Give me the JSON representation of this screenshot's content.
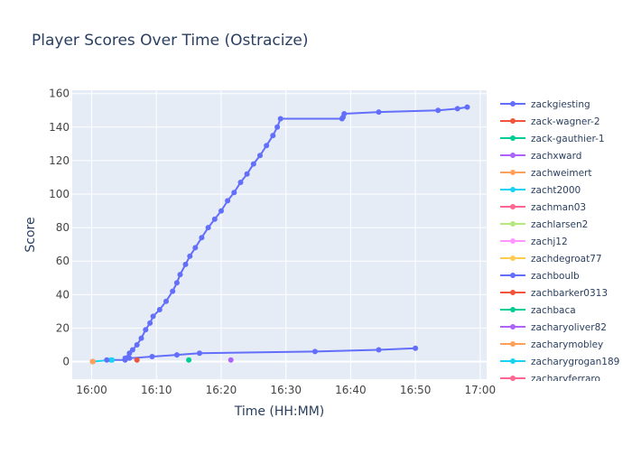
{
  "chart_data": {
    "type": "line",
    "title": "Player Scores Over Time (Ostracize)",
    "xlabel": "Time (HH:MM)",
    "ylabel": "Score",
    "xlim": [
      "15:57",
      "17:01"
    ],
    "ylim": [
      -10.5,
      162
    ],
    "x_ticks": [
      "16:00",
      "16:10",
      "16:20",
      "16:30",
      "16:40",
      "16:50",
      "17:00"
    ],
    "y_ticks": [
      0,
      20,
      40,
      60,
      80,
      100,
      120,
      140,
      160
    ],
    "grid": true,
    "legend_position": "right",
    "series": [
      {
        "name": "zackgiesting",
        "color": "#636efa",
        "points": [
          [
            "16:05:10",
            2
          ],
          [
            "16:05:50",
            5
          ],
          [
            "16:06:20",
            7
          ],
          [
            "16:07:00",
            10
          ],
          [
            "16:07:40",
            14
          ],
          [
            "16:08:20",
            19
          ],
          [
            "16:09:00",
            23
          ],
          [
            "16:09:30",
            27
          ],
          [
            "16:10:30",
            31
          ],
          [
            "16:11:30",
            36
          ],
          [
            "16:12:30",
            42
          ],
          [
            "16:13:10",
            47
          ],
          [
            "16:13:40",
            52
          ],
          [
            "16:14:30",
            58
          ],
          [
            "16:15:10",
            63
          ],
          [
            "16:16:00",
            68
          ],
          [
            "16:17:00",
            74
          ],
          [
            "16:18:00",
            80
          ],
          [
            "16:19:00",
            85
          ],
          [
            "16:20:00",
            90
          ],
          [
            "16:21:00",
            96
          ],
          [
            "16:22:00",
            101
          ],
          [
            "16:23:00",
            107
          ],
          [
            "16:24:00",
            112
          ],
          [
            "16:25:00",
            118
          ],
          [
            "16:26:00",
            123
          ],
          [
            "16:27:00",
            129
          ],
          [
            "16:28:00",
            135
          ],
          [
            "16:28:40",
            140
          ],
          [
            "16:29:10",
            145
          ],
          [
            "16:38:40",
            145
          ],
          [
            "16:38:50",
            146
          ],
          [
            "16:39:00",
            148
          ],
          [
            "16:44:20",
            149
          ],
          [
            "16:53:30",
            150
          ],
          [
            "16:56:30",
            151
          ],
          [
            "16:58:00",
            152
          ]
        ]
      },
      {
        "name": "zack-wagner-2",
        "color": "#ef553b",
        "points": [
          [
            "16:07:00",
            1
          ]
        ]
      },
      {
        "name": "zack-gauthier-1",
        "color": "#00cc96",
        "points": [
          [
            "16:15:00",
            1
          ]
        ]
      },
      {
        "name": "zachxward",
        "color": "#ab63fa",
        "points": [
          [
            "16:21:30",
            1
          ]
        ]
      },
      {
        "name": "zachweimert",
        "color": "#ffa15a",
        "points": [
          [
            "16:00:10",
            0
          ]
        ]
      },
      {
        "name": "zacht2000",
        "color": "#19d3f3",
        "points": [
          [
            "16:03:10",
            1
          ]
        ]
      },
      {
        "name": "zachman03",
        "color": "#ff6692",
        "points": [
          [
            "16:00:10",
            0
          ]
        ]
      },
      {
        "name": "zachlarsen2",
        "color": "#b6e880",
        "points": [
          [
            "16:00:10",
            0
          ]
        ]
      },
      {
        "name": "zachj12",
        "color": "#ff97ff",
        "points": [
          [
            "16:00:10",
            0
          ]
        ]
      },
      {
        "name": "zachdegroat77",
        "color": "#fecb52",
        "points": [
          [
            "16:00:10",
            0
          ]
        ]
      },
      {
        "name": "zachboulb",
        "color": "#636efa",
        "points": [
          [
            "16:02:20",
            1
          ],
          [
            "16:05:10",
            1
          ],
          [
            "16:05:50",
            2
          ],
          [
            "16:09:20",
            3
          ],
          [
            "16:13:10",
            4
          ],
          [
            "16:16:40",
            5
          ],
          [
            "16:34:30",
            6
          ],
          [
            "16:44:20",
            7
          ],
          [
            "16:50:00",
            8
          ]
        ]
      },
      {
        "name": "zachbarker0313",
        "color": "#ef553b",
        "points": [
          [
            "16:00:10",
            0
          ]
        ]
      },
      {
        "name": "zachbaca",
        "color": "#00cc96",
        "points": [
          [
            "16:00:10",
            0
          ]
        ]
      },
      {
        "name": "zacharyoliver82",
        "color": "#ab63fa",
        "points": [
          [
            "16:00:10",
            0
          ]
        ]
      },
      {
        "name": "zacharymobley",
        "color": "#ffa15a",
        "points": [
          [
            "16:00:10",
            0
          ]
        ]
      },
      {
        "name": "zacharygrogan189",
        "color": "#19d3f3",
        "points": [
          [
            "16:00:10",
            0
          ],
          [
            "16:03:00",
            1
          ]
        ]
      },
      {
        "name": "zacharyferraro",
        "color": "#ff6692",
        "points": [
          [
            "16:00:10",
            0
          ]
        ]
      }
    ]
  },
  "colors": {
    "plot_background": "#e5ecf6",
    "grid": "#ffffff",
    "text": "#2a3f5f",
    "tick_text": "#444444"
  }
}
